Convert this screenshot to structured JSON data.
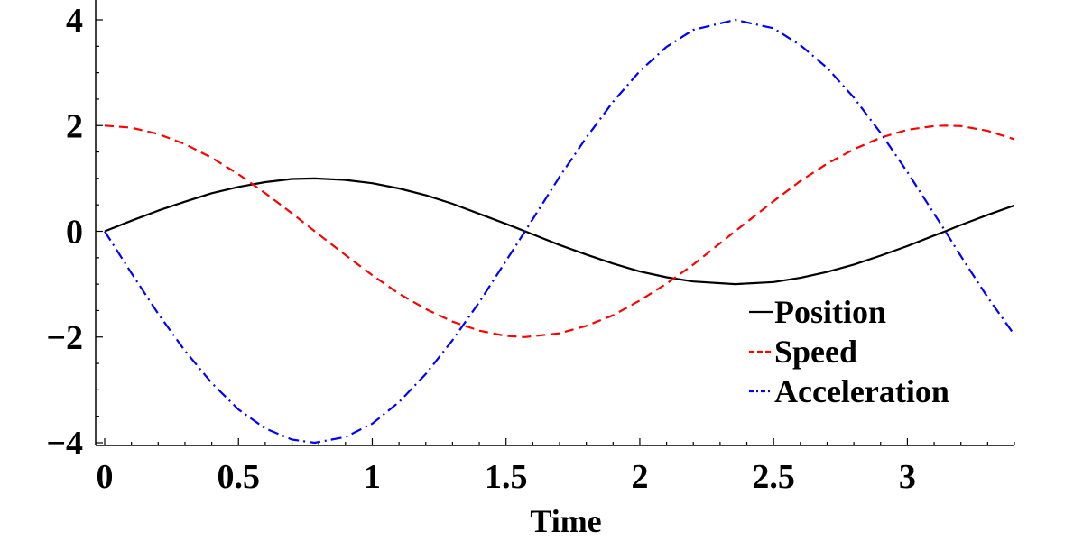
{
  "chart_data": {
    "type": "line",
    "title": "",
    "xlabel": "Time",
    "ylabel": "",
    "xlim": [
      0,
      3.4
    ],
    "ylim": [
      -4,
      4
    ],
    "x_ticks": [
      0,
      0.5,
      1,
      1.5,
      2,
      2.5,
      3
    ],
    "x_tick_labels": [
      "0",
      "0.5",
      "1",
      "1.5",
      "2",
      "2.5",
      "3"
    ],
    "y_ticks": [
      -4,
      -2,
      0,
      2,
      4
    ],
    "y_tick_labels": [
      "−4",
      "−2",
      "0",
      "2",
      "4"
    ],
    "grid": false,
    "legend_position": "lower-right",
    "x": [
      0,
      0.1,
      0.2,
      0.3,
      0.4,
      0.5,
      0.6,
      0.7,
      0.785,
      0.9,
      1.0,
      1.1,
      1.2,
      1.3,
      1.4,
      1.5,
      1.571,
      1.7,
      1.8,
      1.9,
      2.0,
      2.1,
      2.2,
      2.356,
      2.5,
      2.6,
      2.7,
      2.8,
      2.9,
      3.0,
      3.1,
      3.142,
      3.2,
      3.3,
      3.4
    ],
    "series": [
      {
        "name": "Position",
        "color": "#000000",
        "dash": "solid",
        "values": [
          0,
          0.2,
          0.39,
          0.56,
          0.72,
          0.84,
          0.93,
          0.99,
          1.0,
          0.97,
          0.91,
          0.81,
          0.68,
          0.52,
          0.33,
          0.14,
          0.0,
          -0.26,
          -0.44,
          -0.61,
          -0.76,
          -0.87,
          -0.95,
          -1.0,
          -0.96,
          -0.88,
          -0.77,
          -0.63,
          -0.46,
          -0.28,
          -0.08,
          0.0,
          0.12,
          0.31,
          0.49
        ]
      },
      {
        "name": "Speed",
        "color": "#ff0000",
        "dash": "dashed",
        "values": [
          2.0,
          1.96,
          1.84,
          1.65,
          1.39,
          1.08,
          0.72,
          0.34,
          0.0,
          -0.45,
          -0.83,
          -1.18,
          -1.47,
          -1.71,
          -1.88,
          -1.98,
          -2.0,
          -1.93,
          -1.79,
          -1.59,
          -1.31,
          -0.99,
          -0.63,
          0.0,
          0.57,
          0.95,
          1.28,
          1.55,
          1.77,
          1.92,
          1.99,
          2.0,
          1.99,
          1.9,
          1.74
        ]
      },
      {
        "name": "Acceleration",
        "color": "#0000ff",
        "dash": "dashdot",
        "values": [
          0,
          -0.79,
          -1.56,
          -2.26,
          -2.87,
          -3.37,
          -3.73,
          -3.94,
          -4.0,
          -3.89,
          -3.64,
          -3.23,
          -2.7,
          -2.06,
          -1.34,
          -0.56,
          0.0,
          1.03,
          1.77,
          2.45,
          3.03,
          3.49,
          3.81,
          4.0,
          3.84,
          3.52,
          3.09,
          2.53,
          1.86,
          1.12,
          0.33,
          0.0,
          -0.47,
          -1.25,
          -1.96
        ]
      }
    ]
  }
}
